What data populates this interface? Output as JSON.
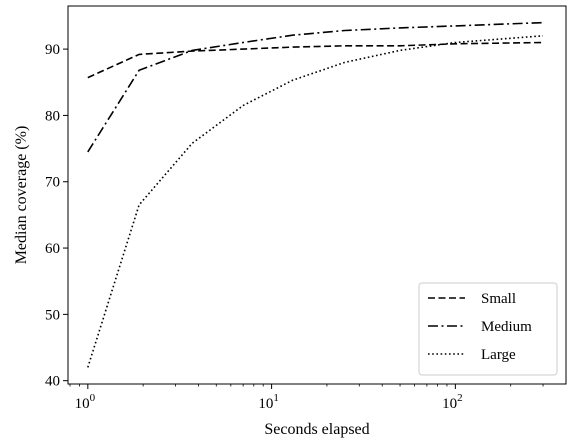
{
  "chart_data": {
    "type": "line",
    "xlabel": "Seconds elapsed",
    "ylabel": "Median coverage (%)",
    "x_scale": "log",
    "xlim": [
      0.78,
      400
    ],
    "ylim": [
      39.5,
      96.5
    ],
    "x_ticks": [
      {
        "value": 1,
        "base": "10",
        "exp": "0"
      },
      {
        "value": 10,
        "base": "10",
        "exp": "1"
      },
      {
        "value": 100,
        "base": "10",
        "exp": "2"
      }
    ],
    "y_ticks": [
      {
        "value": 40,
        "label": "40"
      },
      {
        "value": 50,
        "label": "50"
      },
      {
        "value": 60,
        "label": "60"
      },
      {
        "value": 70,
        "label": "70"
      },
      {
        "value": 80,
        "label": "80"
      },
      {
        "value": 90,
        "label": "90"
      }
    ],
    "grid": false,
    "legend_position": "lower-right",
    "series": [
      {
        "name": "Small",
        "style": "dashed",
        "color": "#000000",
        "points": [
          [
            1,
            85.7
          ],
          [
            1.9,
            89.2
          ],
          [
            3.7,
            89.7
          ],
          [
            7,
            90.0
          ],
          [
            13,
            90.3
          ],
          [
            25,
            90.5
          ],
          [
            50,
            90.5
          ],
          [
            100,
            90.8
          ],
          [
            300,
            91.0
          ]
        ]
      },
      {
        "name": "Medium",
        "style": "dashdot",
        "color": "#000000",
        "points": [
          [
            1,
            74.5
          ],
          [
            1.9,
            86.8
          ],
          [
            3.7,
            89.8
          ],
          [
            7,
            91.0
          ],
          [
            13,
            92.1
          ],
          [
            25,
            92.8
          ],
          [
            50,
            93.2
          ],
          [
            100,
            93.5
          ],
          [
            300,
            94.0
          ]
        ]
      },
      {
        "name": "Large",
        "style": "dotted",
        "color": "#000000",
        "points": [
          [
            1,
            42.0
          ],
          [
            1.9,
            66.5
          ],
          [
            3.7,
            75.8
          ],
          [
            7,
            81.5
          ],
          [
            13,
            85.3
          ],
          [
            25,
            88.0
          ],
          [
            50,
            89.8
          ],
          [
            100,
            91.0
          ],
          [
            300,
            92.0
          ]
        ]
      }
    ]
  }
}
